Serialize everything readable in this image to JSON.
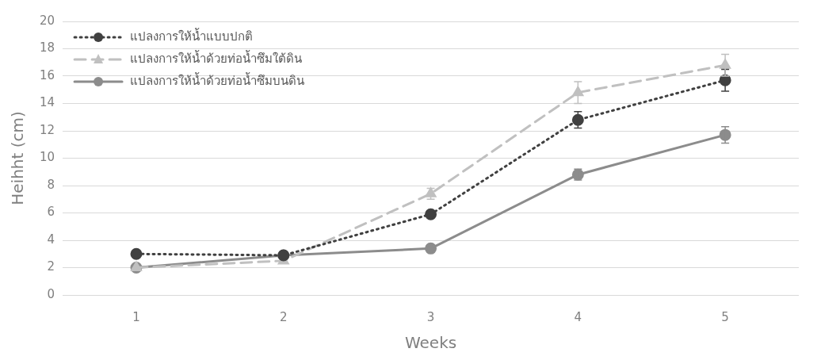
{
  "chart_data": {
    "type": "line",
    "xlabel": "Weeks",
    "ylabel": "Heihht (cm)",
    "categories": [
      "1",
      "2",
      "3",
      "4",
      "5"
    ],
    "series": [
      {
        "name": "แปลงการให้น้ำแบบปกติ",
        "color": "#404040",
        "line_style": "dotted",
        "marker": "circle",
        "values": [
          3,
          2.9,
          5.9,
          12.8,
          15.7
        ],
        "errors": [
          null,
          null,
          null,
          0.6,
          0.8
        ]
      },
      {
        "name": "แปลงการให้น้ำด้วยท่อน้ำซึมใต้ดิน",
        "color": "#c0c0c0",
        "line_style": "dashed",
        "marker": "triangle",
        "values": [
          2,
          2.5,
          7.4,
          14.8,
          16.8
        ],
        "errors": [
          null,
          null,
          0.4,
          0.8,
          0.8
        ]
      },
      {
        "name": "แปลงการให้น้ำด้วยท่อน้ำซึมบนดิน",
        "color": "#8c8c8c",
        "line_style": "solid",
        "marker": "circle",
        "values": [
          2,
          2.9,
          3.4,
          8.8,
          11.7
        ],
        "errors": [
          null,
          null,
          null,
          0.4,
          0.6
        ]
      }
    ],
    "ylim": [
      0,
      20
    ],
    "yticks": [
      0,
      2,
      4,
      6,
      8,
      10,
      12,
      14,
      16,
      18,
      20
    ],
    "grid": "y",
    "legend": "top left"
  }
}
